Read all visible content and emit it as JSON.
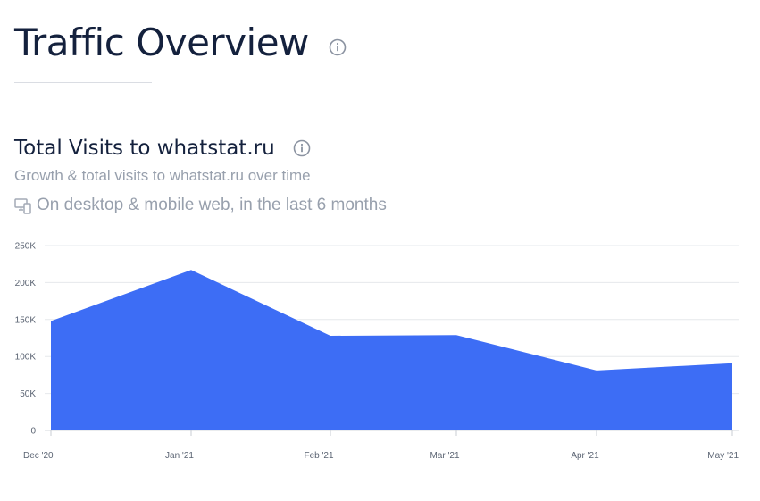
{
  "header": {
    "title": "Traffic Overview"
  },
  "section": {
    "title": "Total Visits to whatstat.ru",
    "subtitle": "Growth & total visits to whatstat.ru over time",
    "device_note": "On desktop & mobile web, in the last 6 months"
  },
  "icons": {
    "title_info": "info-circle-icon",
    "section_info": "info-circle-icon",
    "device": "desktop-mobile-icon"
  },
  "colors": {
    "area_fill": "#3d6df5",
    "title_text": "#14213d",
    "muted_text": "#98a0ad",
    "grid": "#e6e8ec"
  },
  "chart_data": {
    "type": "area",
    "categories": [
      "Dec '20",
      "Jan '21",
      "Feb '21",
      "Mar '21",
      "Apr '21",
      "May '21"
    ],
    "values": [
      148000,
      217000,
      128000,
      129000,
      81000,
      91000
    ],
    "ylim": [
      0,
      250000
    ],
    "y_ticks": [
      0,
      50000,
      100000,
      150000,
      200000,
      250000
    ],
    "y_tick_labels": [
      "0",
      "50K",
      "100K",
      "150K",
      "200K",
      "250K"
    ],
    "grid": true,
    "legend": "none"
  }
}
